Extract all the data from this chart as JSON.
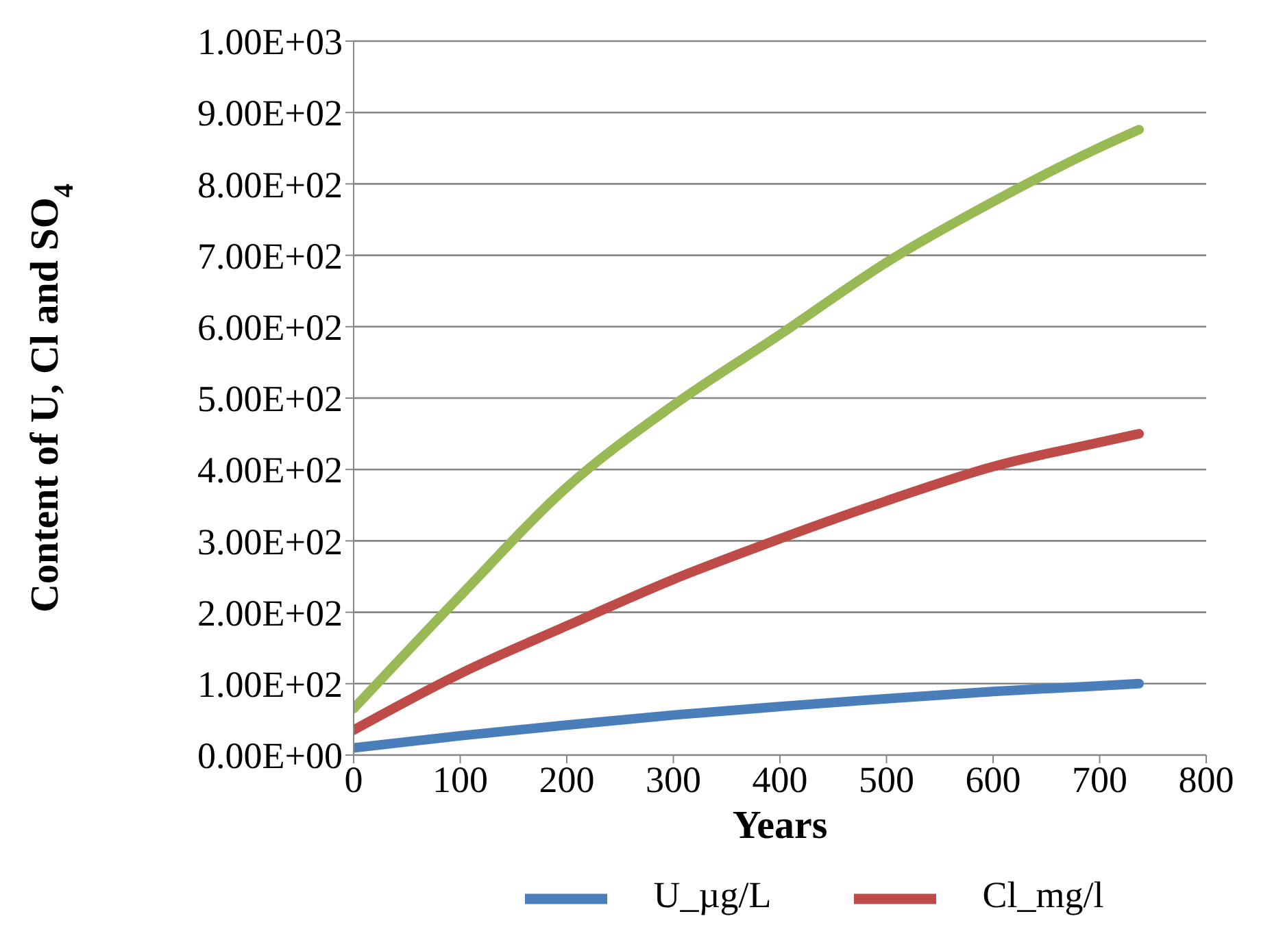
{
  "chart_data": {
    "type": "line",
    "xlabel": "Years",
    "ylabel": "Content of U, Cl and SO$_{4}$",
    "x": [
      0,
      100,
      200,
      300,
      400,
      500,
      600,
      700,
      737
    ],
    "series": [
      {
        "name": "U_µg/L",
        "color": "#4a7ebb",
        "values": [
          10,
          27,
          42,
          56,
          68,
          79,
          89,
          97,
          100
        ]
      },
      {
        "name": "Cl_mg/l",
        "color": "#be4b48",
        "values": [
          35,
          114,
          181,
          246,
          303,
          356,
          404,
          438,
          450
        ]
      },
      {
        "color": "#98b954",
        "values": [
          65,
          223,
          375,
          490,
          589,
          690,
          775,
          851,
          876
        ]
      }
    ],
    "xlim": [
      0,
      800
    ],
    "xticks": [
      0,
      100,
      200,
      300,
      400,
      500,
      600,
      700,
      800
    ],
    "ylim": [
      0,
      1000
    ],
    "yticks": [
      {
        "value": 0,
        "label": "0.00E+00"
      },
      {
        "value": 100,
        "label": "1.00E+02"
      },
      {
        "value": 200,
        "label": "2.00E+02"
      },
      {
        "value": 300,
        "label": "3.00E+02"
      },
      {
        "value": 400,
        "label": "4.00E+02"
      },
      {
        "value": 500,
        "label": "5.00E+02"
      },
      {
        "value": 600,
        "label": "6.00E+02"
      },
      {
        "value": 700,
        "label": "7.00E+02"
      },
      {
        "value": 800,
        "label": "8.00E+02"
      },
      {
        "value": 900,
        "label": "9.00E+02"
      },
      {
        "value": 1000,
        "label": "1.00E+03"
      }
    ],
    "grid": "y",
    "legend": "bottom",
    "line_style": "solid"
  }
}
